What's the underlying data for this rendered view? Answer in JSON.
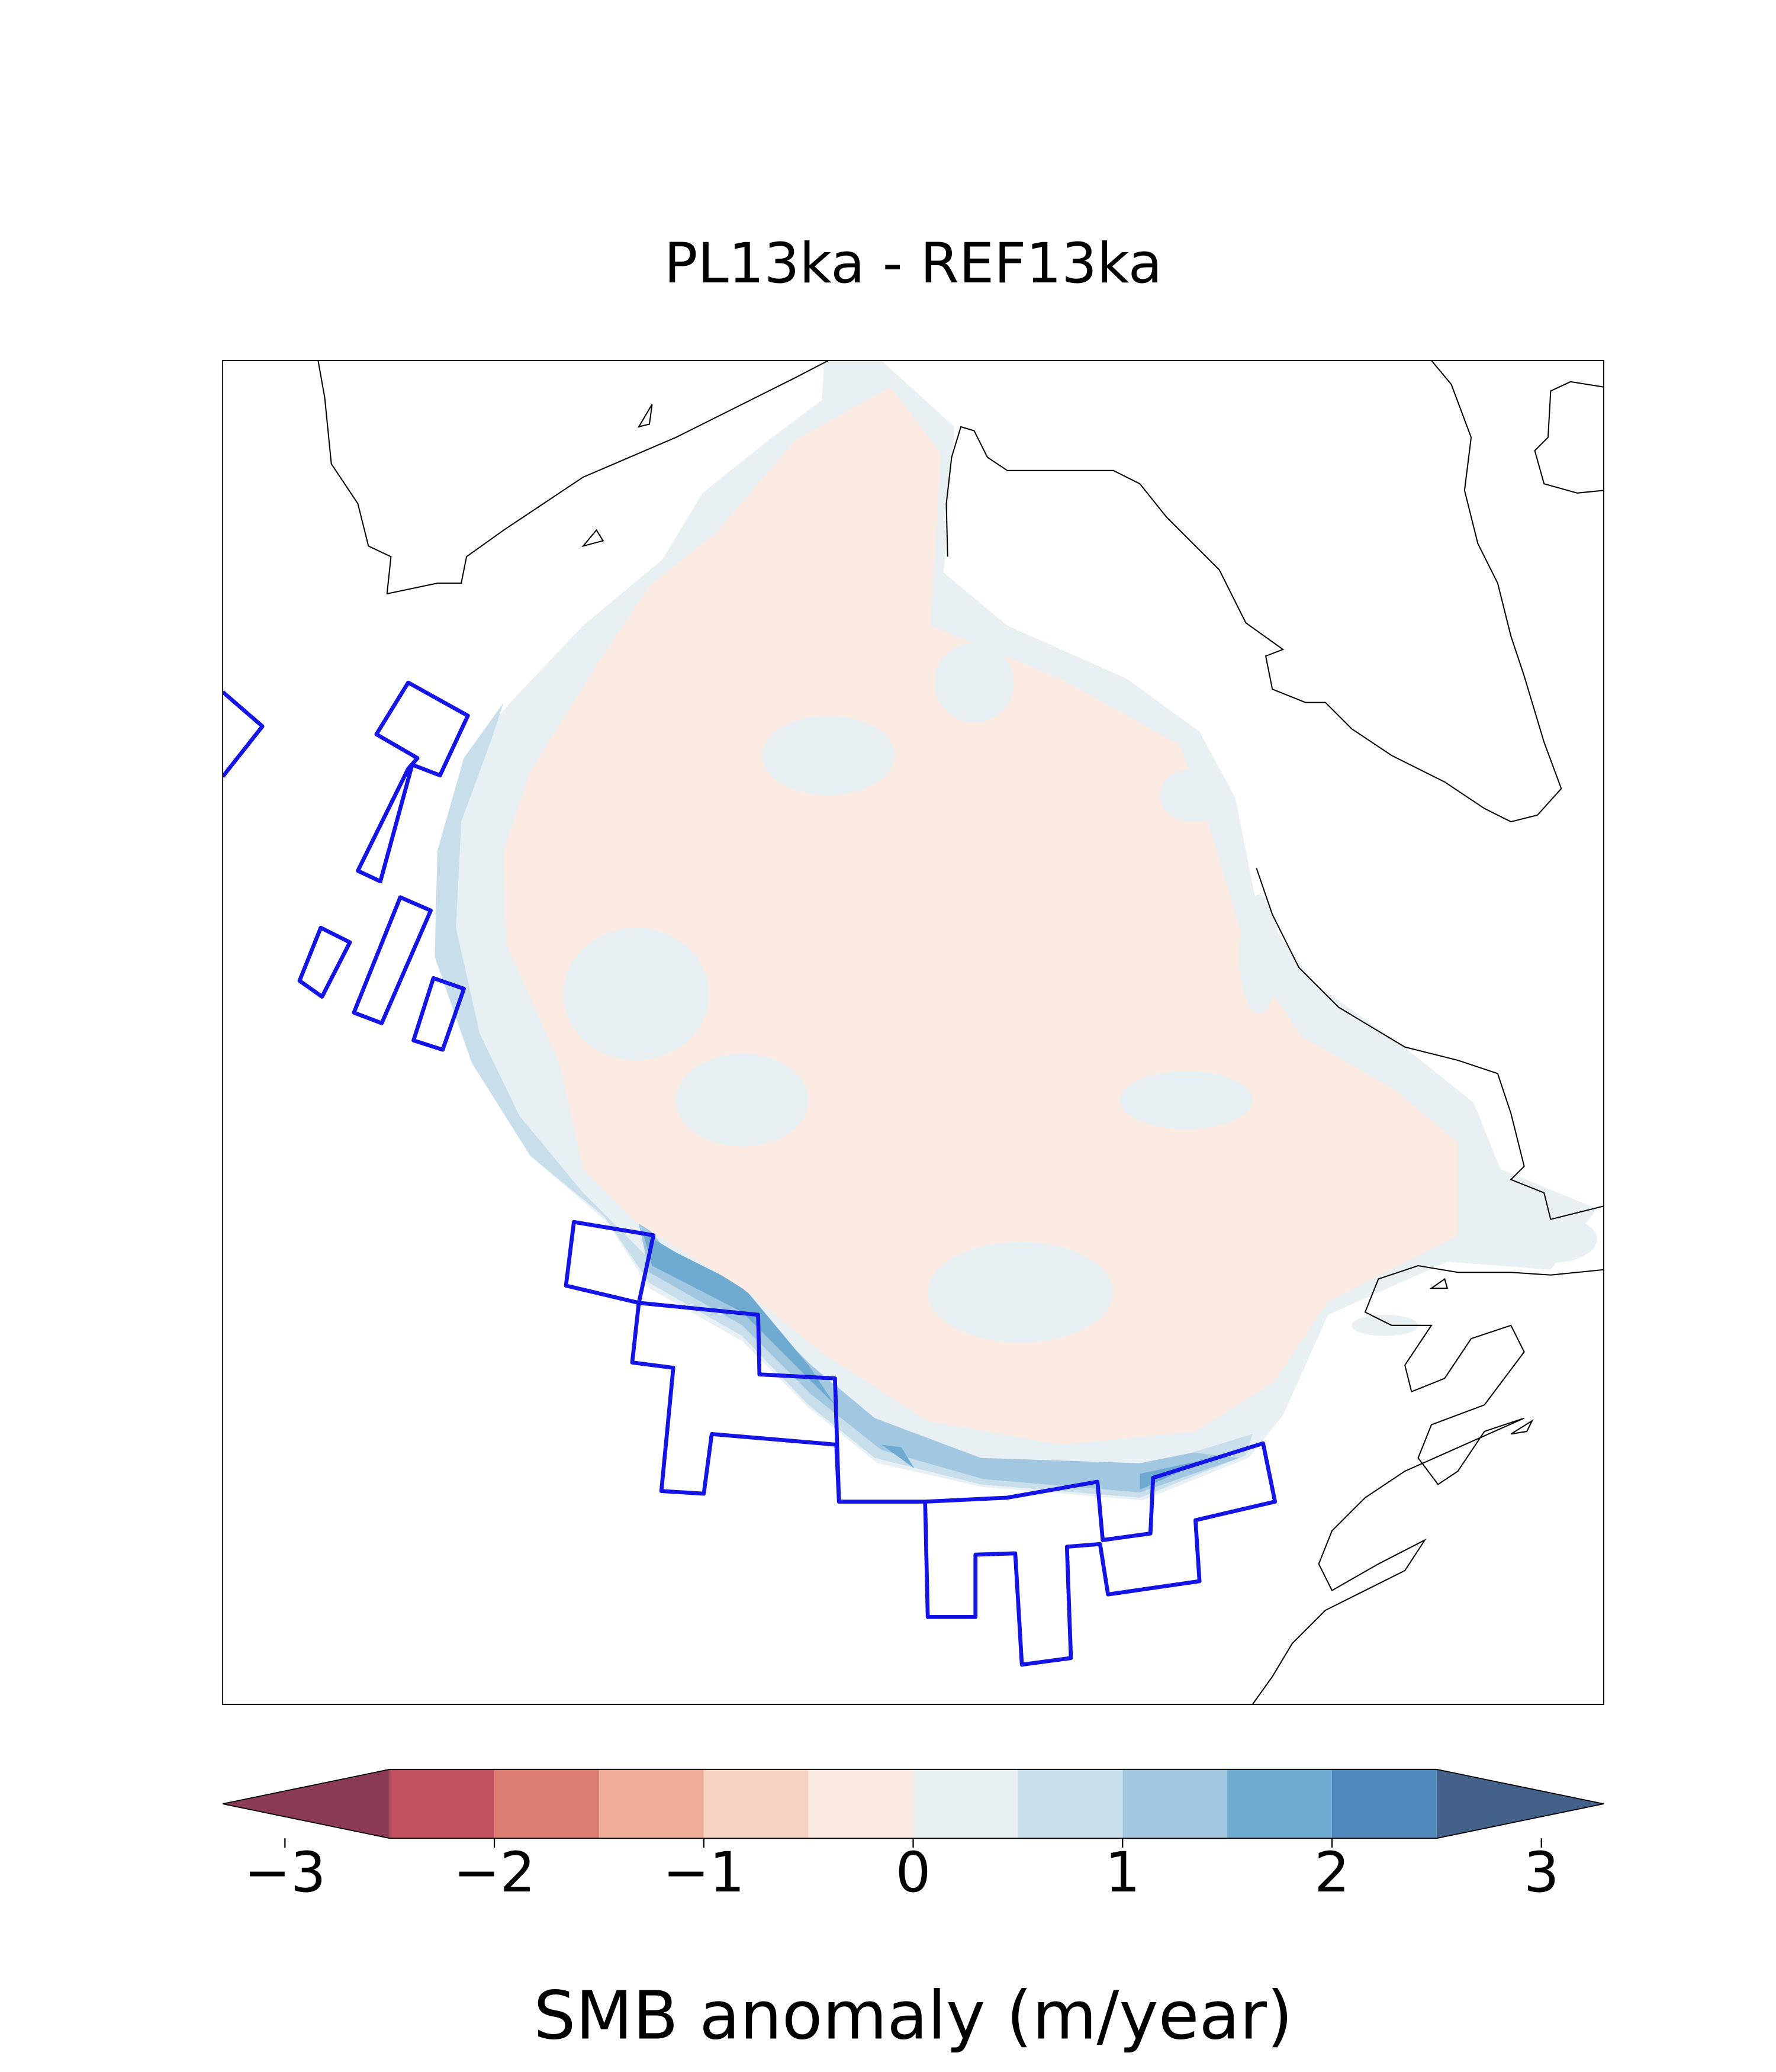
{
  "title": "PL13ka - REF13ka",
  "colorbar": {
    "label": "SMB anomaly (m/year)",
    "lim": [
      -3,
      3
    ],
    "ticks": [
      {
        "value": -3,
        "label": "−3"
      },
      {
        "value": -2,
        "label": "−2"
      },
      {
        "value": -1,
        "label": "−1"
      },
      0,
      1,
      2,
      3
    ],
    "levels": [
      -2.5,
      -2,
      -1.5,
      -1,
      -0.5,
      0,
      0.5,
      1,
      1.5,
      2,
      2.5
    ],
    "colors": [
      "#8b3b55",
      "#c0505f",
      "#dc7d72",
      "#f0ad95",
      "#f9d3c2",
      "#fbebe3",
      "#e8f0f4",
      "#c8dfeb",
      "#a1c8e0",
      "#6faad1",
      "#5289bd",
      "#44618a"
    ],
    "extend": "both"
  }
}
